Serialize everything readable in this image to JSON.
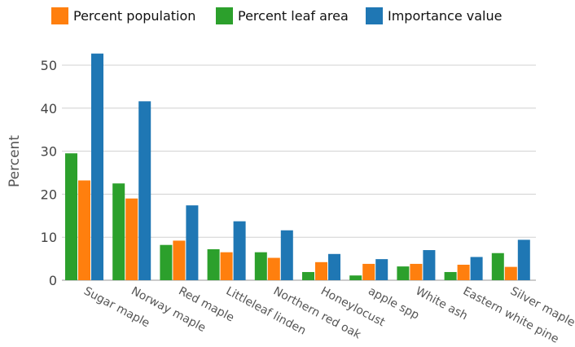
{
  "chart_data": {
    "type": "bar",
    "title": "",
    "xlabel": "",
    "ylabel": "Percent",
    "ylim": [
      0,
      50
    ],
    "yticks": [
      0,
      10,
      20,
      30,
      40,
      50
    ],
    "grid": true,
    "legend_position": "top-left",
    "categories": [
      "Sugar maple",
      "Norway maple",
      "Red maple",
      "Littleleaf linden",
      "Northern red oak",
      "Honeylocust",
      "apple spp",
      "White ash",
      "Eastern white pine",
      "Silver maple"
    ],
    "series": [
      {
        "name": "Percent leaf area",
        "color": "#2ca02c",
        "values": [
          29.5,
          22.5,
          8.2,
          7.2,
          6.5,
          1.9,
          1.1,
          3.2,
          1.9,
          6.3
        ]
      },
      {
        "name": "Percent population",
        "color": "#ff7f0e",
        "values": [
          23.2,
          19.0,
          9.2,
          6.5,
          5.2,
          4.2,
          3.8,
          3.8,
          3.6,
          3.1
        ]
      },
      {
        "name": "Importance value",
        "color": "#1f77b4",
        "values": [
          52.7,
          41.6,
          17.4,
          13.7,
          11.6,
          6.1,
          4.9,
          7.0,
          5.4,
          9.4
        ]
      }
    ],
    "legend": [
      {
        "name": "Percent population",
        "color": "#ff7f0e"
      },
      {
        "name": "Percent leaf area",
        "color": "#2ca02c"
      },
      {
        "name": "Importance value",
        "color": "#1f77b4"
      }
    ]
  }
}
